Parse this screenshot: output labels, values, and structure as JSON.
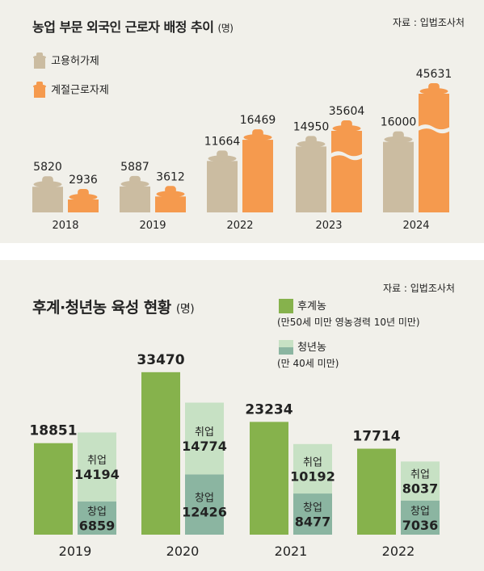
{
  "chart_data": [
    {
      "type": "bar",
      "title": "농업 부문 외국인 근로자 배정 추이",
      "unit": "(명)",
      "source": "자료 : 입법조사처",
      "categories": [
        "2018",
        "2019",
        "2022",
        "2023",
        "2024"
      ],
      "series": [
        {
          "name": "고용허가제",
          "values": [
            5820,
            5887,
            11664,
            14950,
            16000
          ]
        },
        {
          "name": "계절근로자제",
          "values": [
            2936,
            3612,
            16469,
            35604,
            45631
          ]
        }
      ],
      "legend_position": "top-left",
      "colors": {
        "고용허가제": "#cbbca1",
        "계절근로자제": "#f59a4e"
      },
      "axis_break_years": [
        "2023",
        "2024"
      ]
    },
    {
      "type": "bar",
      "title": "후계·청년농 육성 현황",
      "unit": "(명)",
      "source": "자료 : 입법조사처",
      "categories": [
        "2019",
        "2020",
        "2021",
        "2022"
      ],
      "series": [
        {
          "name": "후계농",
          "note": "(만50세 미만 영농경력 10년 미만)",
          "values": [
            18851,
            33470,
            23234,
            17714
          ]
        },
        {
          "name": "청년농",
          "note": "(만 40세 미만)",
          "values": [
            21053,
            27200,
            18669,
            15073
          ]
        }
      ],
      "stacked_segments": {
        "series": "청년농",
        "parts": [
          {
            "name": "취업",
            "values": [
              14194,
              14774,
              10192,
              8037
            ]
          },
          {
            "name": "창업",
            "values": [
              6859,
              12426,
              8477,
              7036
            ]
          }
        ]
      },
      "legend_position": "top-right",
      "colors": {
        "후계농": "#86b24c",
        "취업": "#c7e1c4",
        "창업": "#8bb5a1"
      }
    }
  ]
}
